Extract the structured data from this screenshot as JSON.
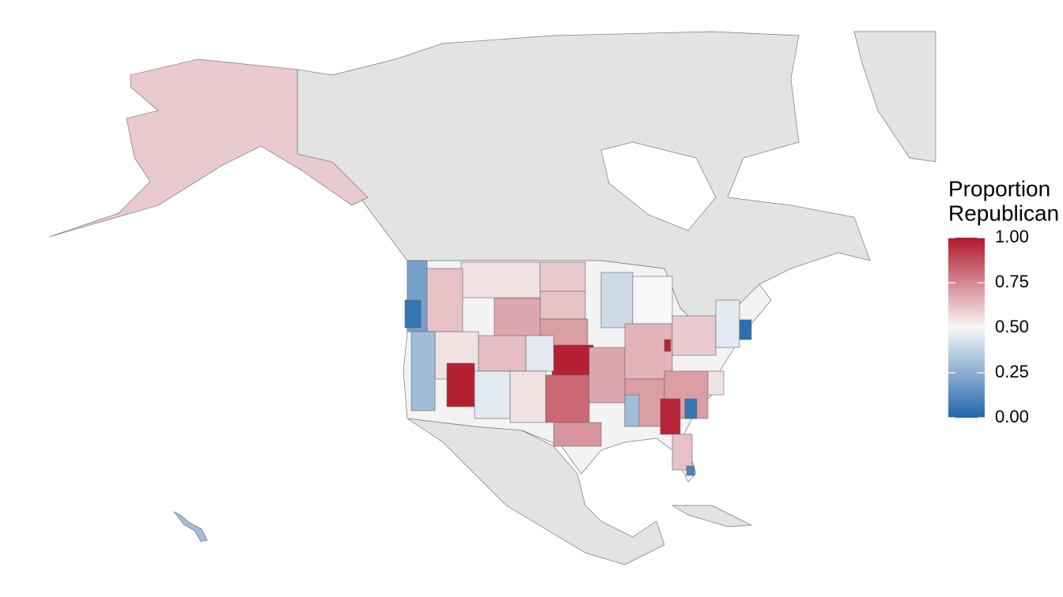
{
  "map": {
    "legend": {
      "title": [
        "Proportion",
        "Republican"
      ],
      "limits": [
        0,
        1
      ],
      "colors": [
        "#2166ac",
        "#f7f7f7",
        "#b2182b"
      ],
      "ticks": [
        {
          "value": 0,
          "label": "0.00"
        },
        {
          "value": 0.25,
          "label": "0.25"
        },
        {
          "value": 0.5,
          "label": "0.50"
        },
        {
          "value": 0.75,
          "label": "0.75"
        },
        {
          "value": 1,
          "label": "1.00"
        }
      ]
    },
    "regions": {
      "values": [
        0.6,
        0.3,
        0.55,
        0.6,
        0.62,
        0.68,
        0.7,
        0.98,
        0.2,
        0.05,
        0.62,
        0.55,
        0.98,
        0.3,
        0.63,
        0.45,
        0.45,
        0.55,
        0.82,
        0.72,
        0.68,
        0.4,
        0.5,
        0.65,
        0.6,
        0.45,
        0.03,
        0.7,
        0.3,
        0.7,
        0.97,
        0.05,
        0.55,
        0.62,
        0.1,
        0.97
      ]
    }
  }
}
